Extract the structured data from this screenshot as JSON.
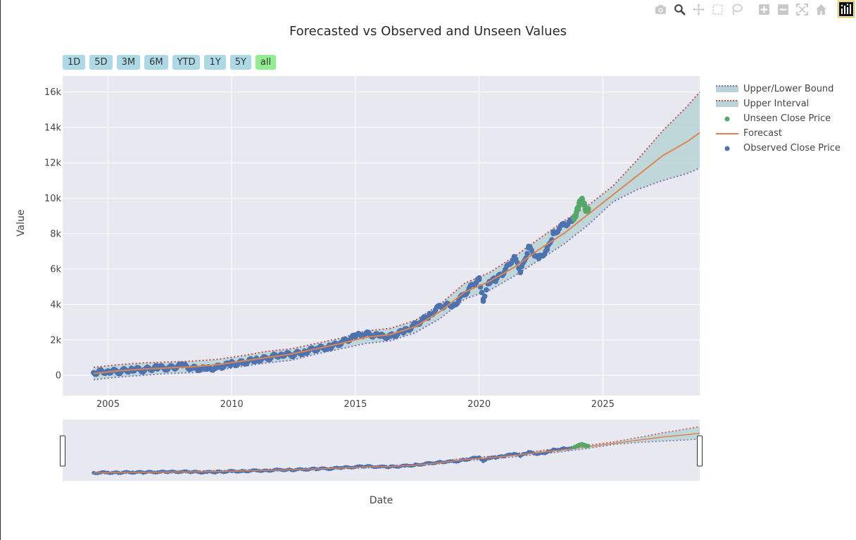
{
  "modebar": {
    "icons": [
      "camera-icon",
      "zoom-icon",
      "pan-icon",
      "box-select-icon",
      "lasso-icon",
      "zoom-in-icon",
      "zoom-out-icon",
      "autoscale-icon",
      "reset-axes-icon",
      "plotly-logo-icon"
    ]
  },
  "range_selector": {
    "buttons": [
      "1D",
      "5D",
      "3M",
      "6M",
      "YTD",
      "1Y",
      "5Y",
      "all"
    ],
    "active": "all"
  },
  "colors": {
    "background": "#e8e8f1",
    "observed": "#4c72b0",
    "unseen": "#55a868",
    "forecast": "#dd8452",
    "upper_interval": "#c44e52",
    "lower_bound": "#8172b3",
    "band_fill": "#b9d3d6",
    "active_button": "#90ee90",
    "button": "#add8e6"
  },
  "chart_data": {
    "type": "line",
    "title": "Forecasted vs Observed and Unseen Values",
    "xlabel": "Date",
    "ylabel": "Value",
    "xlim": [
      "2003-03",
      "2028-12"
    ],
    "ylim": [
      -1150,
      16900
    ],
    "x_ticks": [
      "2005",
      "2010",
      "2015",
      "2020",
      "2025"
    ],
    "y_ticks": [
      0,
      2000,
      4000,
      6000,
      8000,
      10000,
      12000,
      14000,
      16000
    ],
    "y_tick_labels": [
      "0",
      "2k",
      "4k",
      "6k",
      "8k",
      "10k",
      "12k",
      "14k",
      "16k"
    ],
    "grid": true,
    "legend_position": "right",
    "rangeslider": true,
    "series": [
      {
        "name": "Upper/Lower Bound",
        "kind": "dotted-band-lower",
        "x": [
          "2004-06",
          "2005-06",
          "2006-06",
          "2007-06",
          "2008-06",
          "2009-06",
          "2010-06",
          "2011-06",
          "2012-06",
          "2013-06",
          "2014-06",
          "2015-06",
          "2016-06",
          "2017-06",
          "2018-06",
          "2019-06",
          "2020-06",
          "2021-06",
          "2022-06",
          "2023-06",
          "2024-06",
          "2025-06",
          "2026-06",
          "2027-06",
          "2028-06",
          "2028-12"
        ],
        "values": [
          -250,
          -100,
          0,
          100,
          150,
          300,
          500,
          700,
          850,
          1200,
          1500,
          1800,
          1950,
          2400,
          3200,
          4300,
          4800,
          5600,
          6500,
          7400,
          8500,
          9800,
          10500,
          11000,
          11400,
          11700
        ]
      },
      {
        "name": "Upper Interval",
        "kind": "dotted-band-upper",
        "x": [
          "2004-06",
          "2005-06",
          "2006-06",
          "2007-06",
          "2008-06",
          "2009-06",
          "2010-06",
          "2011-06",
          "2012-06",
          "2013-06",
          "2014-06",
          "2015-06",
          "2016-06",
          "2017-06",
          "2018-06",
          "2019-06",
          "2020-06",
          "2021-06",
          "2022-06",
          "2023-06",
          "2024-06",
          "2025-06",
          "2026-06",
          "2027-06",
          "2028-06",
          "2028-12"
        ],
        "values": [
          450,
          600,
          700,
          750,
          800,
          900,
          1100,
          1350,
          1500,
          1800,
          2100,
          2500,
          2650,
          3100,
          4000,
          5200,
          5800,
          6700,
          7700,
          8700,
          9600,
          10700,
          12200,
          13800,
          15200,
          16000
        ]
      },
      {
        "name": "Unseen Close Price",
        "kind": "markers",
        "x": [
          "2023-11",
          "2023-12",
          "2024-01",
          "2024-02",
          "2024-03",
          "2024-04",
          "2024-05",
          "2024-06"
        ],
        "values": [
          8800,
          9100,
          9500,
          9800,
          9900,
          9600,
          9300,
          9400
        ]
      },
      {
        "name": "Forecast",
        "kind": "line",
        "x": [
          "2004-06",
          "2005-06",
          "2006-06",
          "2007-06",
          "2008-06",
          "2009-06",
          "2010-06",
          "2011-06",
          "2012-06",
          "2013-06",
          "2014-06",
          "2015-06",
          "2016-06",
          "2017-06",
          "2018-06",
          "2019-06",
          "2020-06",
          "2021-06",
          "2022-06",
          "2023-06",
          "2024-06",
          "2025-06",
          "2026-06",
          "2027-06",
          "2028-06",
          "2028-12"
        ],
        "values": [
          100,
          250,
          350,
          420,
          480,
          600,
          800,
          1000,
          1200,
          1500,
          1800,
          2150,
          2300,
          2750,
          3600,
          4700,
          5300,
          6100,
          7100,
          8000,
          9100,
          10200,
          11300,
          12400,
          13200,
          13700
        ]
      },
      {
        "name": "Observed Close Price",
        "kind": "markers",
        "x": [
          "2004-06",
          "2005-01",
          "2005-06",
          "2006-01",
          "2006-06",
          "2007-01",
          "2007-06",
          "2008-01",
          "2008-06",
          "2009-01",
          "2009-06",
          "2010-01",
          "2010-06",
          "2011-01",
          "2011-06",
          "2012-01",
          "2012-06",
          "2013-01",
          "2013-06",
          "2014-01",
          "2014-06",
          "2015-01",
          "2015-06",
          "2016-01",
          "2016-06",
          "2017-01",
          "2017-06",
          "2018-01",
          "2018-06",
          "2019-01",
          "2019-06",
          "2020-01",
          "2020-03",
          "2020-06",
          "2020-09",
          "2021-01",
          "2021-06",
          "2021-09",
          "2022-01",
          "2022-06",
          "2022-10",
          "2023-01",
          "2023-06",
          "2023-10"
        ],
        "values": [
          150,
          250,
          200,
          350,
          300,
          450,
          400,
          550,
          400,
          350,
          450,
          650,
          700,
          900,
          950,
          1200,
          1150,
          1350,
          1500,
          1600,
          1850,
          2200,
          2350,
          2200,
          2200,
          2500,
          2850,
          3400,
          3900,
          4000,
          4600,
          5500,
          4300,
          5300,
          5400,
          5800,
          6700,
          5800,
          7200,
          6600,
          7100,
          8000,
          8500,
          8700
        ]
      }
    ]
  }
}
